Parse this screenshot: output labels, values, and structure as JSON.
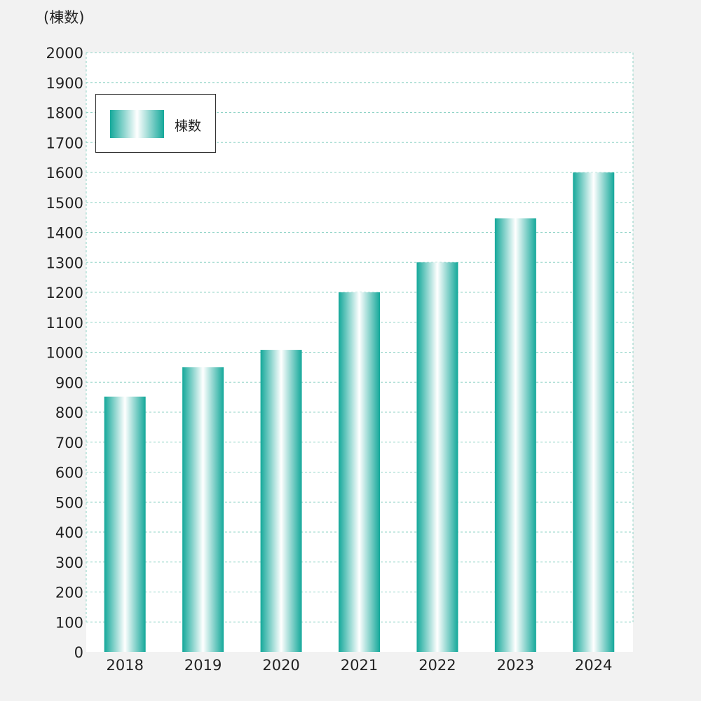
{
  "chart_data": {
    "type": "bar",
    "unit_label": "(棟数)",
    "categories": [
      "2018",
      "2019",
      "2020",
      "2021",
      "2022",
      "2023",
      "2024"
    ],
    "series": [
      {
        "name": "棟数",
        "values": [
          852,
          950,
          1008,
          1200,
          1300,
          1447,
          1600
        ]
      }
    ],
    "ylim": [
      0,
      2000
    ],
    "yticks": [
      0,
      100,
      200,
      300,
      400,
      500,
      600,
      700,
      800,
      900,
      1000,
      1100,
      1200,
      1300,
      1400,
      1500,
      1600,
      1700,
      1800,
      1900,
      2000
    ],
    "grid": true,
    "legend_position": "top-left",
    "colors": {
      "bar_edge": "#14a89a",
      "bar_center": "#ffffff",
      "grid": "#8fd3c6",
      "plot_background": "#ffffff",
      "page_background": "#f2f2f2"
    }
  }
}
